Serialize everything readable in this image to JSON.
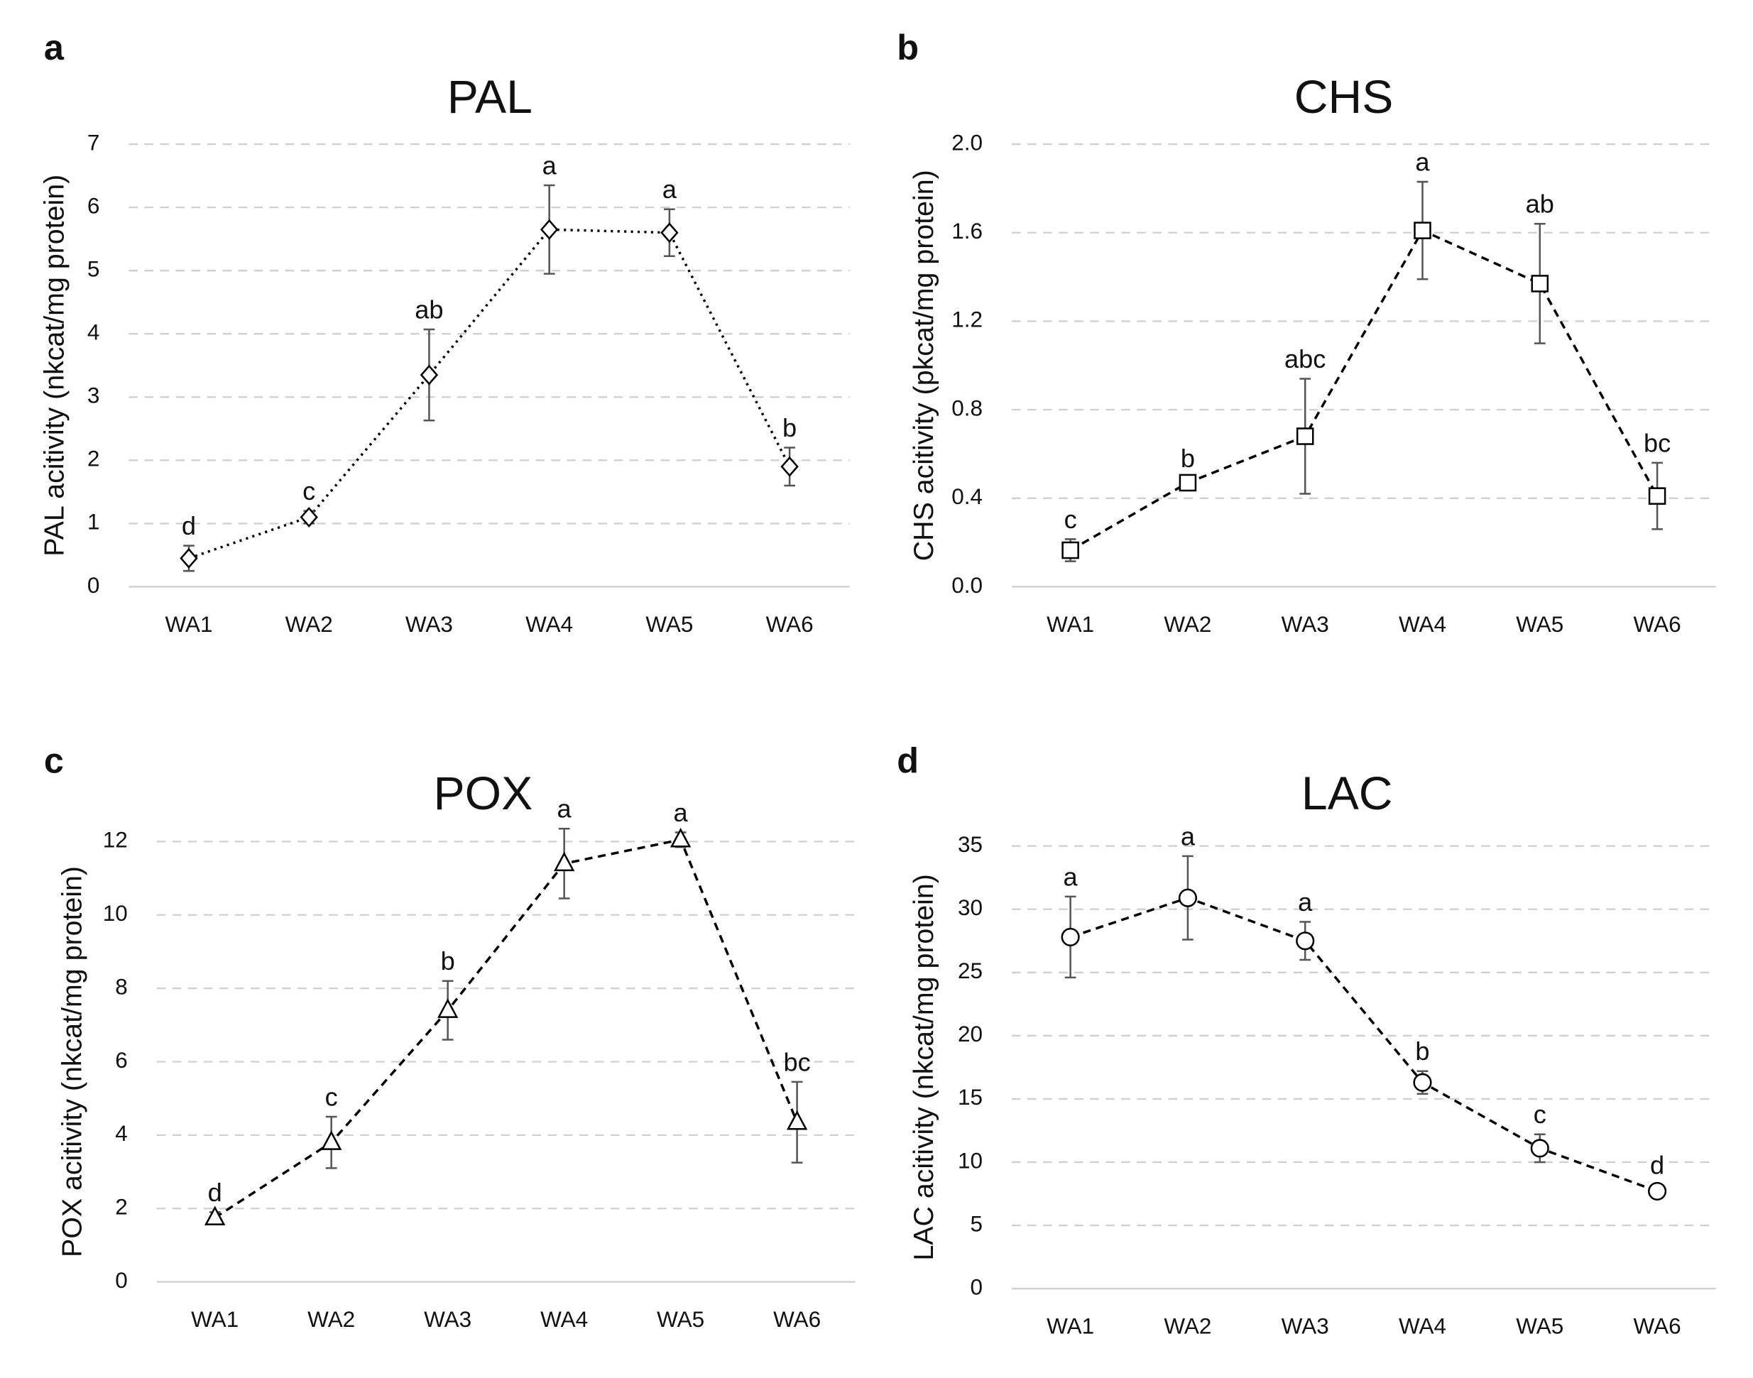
{
  "chart_data": [
    {
      "type": "line",
      "panel": "a",
      "title": "PAL",
      "ylabel": "PAL acitivity (nkcat/mg protein)",
      "categories": [
        "WA1",
        "WA2",
        "WA3",
        "WA4",
        "WA5",
        "WA6"
      ],
      "values": [
        0.45,
        1.1,
        3.35,
        5.65,
        5.6,
        1.9
      ],
      "errors": [
        0.2,
        0.1,
        0.72,
        0.7,
        0.37,
        0.3
      ],
      "annotations": [
        "d",
        "c",
        "ab",
        "a",
        "a",
        "b"
      ],
      "marker": "diamond",
      "line_style": "dotted",
      "color": "#000000",
      "ylim": [
        0,
        7
      ],
      "yticks": [
        0,
        1,
        2,
        3,
        4,
        5,
        6,
        7
      ],
      "grid": true
    },
    {
      "type": "line",
      "panel": "b",
      "title": "CHS",
      "ylabel": "CHS acitivity (pkcat/mg protein)",
      "categories": [
        "WA1",
        "WA2",
        "WA3",
        "WA4",
        "WA5",
        "WA6"
      ],
      "values": [
        0.165,
        0.47,
        0.68,
        1.61,
        1.37,
        0.41
      ],
      "errors": [
        0.05,
        0.02,
        0.26,
        0.22,
        0.27,
        0.15
      ],
      "annotations": [
        "c",
        "b",
        "abc",
        "a",
        "ab",
        "bc"
      ],
      "marker": "square",
      "line_style": "dashed",
      "color": "#000000",
      "ylim": [
        0,
        2
      ],
      "yticks": [
        {
          "value": 0,
          "label": "0.0"
        },
        0.4,
        0.8,
        1.2,
        1.6,
        {
          "value": 2,
          "label": "2.0"
        }
      ],
      "grid": true
    },
    {
      "type": "line",
      "panel": "c",
      "title": "POX",
      "ylabel": "POX acitivity (nkcat/mg protein)",
      "categories": [
        "WA1",
        "WA2",
        "WA3",
        "WA4",
        "WA5",
        "WA6"
      ],
      "values": [
        1.75,
        3.8,
        7.4,
        11.4,
        12.05,
        4.35
      ],
      "errors": [
        0.15,
        0.7,
        0.8,
        0.95,
        0.2,
        1.1
      ],
      "annotations": [
        "d",
        "c",
        "b",
        "a",
        "a",
        "bc"
      ],
      "marker": "triangle",
      "line_style": "dashed",
      "color": "#000000",
      "ylim": [
        0,
        12
      ],
      "yticks": [
        0,
        2,
        4,
        6,
        8,
        10,
        12
      ],
      "grid": true
    },
    {
      "type": "line",
      "panel": "d",
      "title": "LAC",
      "ylabel": "LAC acitivity (nkcat/mg protein)",
      "categories": [
        "WA1",
        "WA2",
        "WA3",
        "WA4",
        "WA5",
        "WA6"
      ],
      "values": [
        27.8,
        30.9,
        27.5,
        16.3,
        11.1,
        7.7
      ],
      "errors": [
        3.2,
        3.3,
        1.5,
        0.9,
        1.1,
        0.5
      ],
      "annotations": [
        "a",
        "a",
        "a",
        "b",
        "c",
        "d"
      ],
      "marker": "circle",
      "line_style": "dashed",
      "color": "#000000",
      "ylim": [
        0,
        35
      ],
      "yticks": [
        0,
        5,
        10,
        15,
        20,
        25,
        30,
        35
      ],
      "grid": true
    }
  ]
}
